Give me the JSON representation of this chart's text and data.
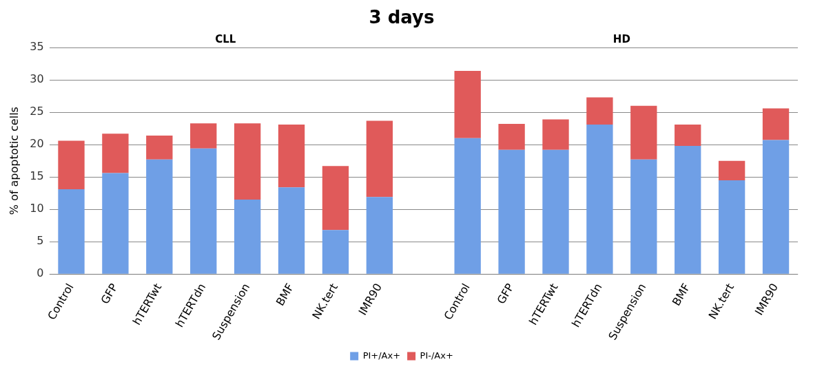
{
  "chart_data": {
    "type": "bar",
    "title": "3 days",
    "ylabel": "% of apoptotic cells",
    "stacked": true,
    "grid": "y",
    "legend": "bottom",
    "annotations": [
      "CLL",
      "HD"
    ],
    "categories": [
      "Control",
      "GFP",
      "hTERTwt",
      "hTERTdn",
      "Suspension",
      "BMF",
      "NK.tert",
      "IMR90",
      null,
      "Control",
      "GFP",
      "hTERTwt",
      "hTERTdn",
      "Suspension",
      "BMF",
      "NK.tert",
      "IMR90"
    ],
    "ylim": [
      0,
      35
    ],
    "yticks": [
      0,
      5,
      10,
      15,
      20,
      25,
      30,
      35
    ],
    "series": [
      {
        "name": "PI+/Ax+",
        "color": "#6f9fe6",
        "values": [
          13.1,
          15.6,
          17.7,
          19.4,
          11.5,
          13.4,
          6.8,
          11.9,
          null,
          21.0,
          19.2,
          19.2,
          23.1,
          17.7,
          19.8,
          14.5,
          20.7
        ]
      },
      {
        "name": "PI-/Ax+",
        "color": "#e05a5a",
        "values": [
          7.5,
          6.1,
          3.7,
          3.9,
          11.8,
          9.7,
          9.9,
          11.8,
          null,
          10.4,
          4.0,
          4.7,
          4.2,
          8.3,
          3.3,
          3.0,
          4.9
        ]
      }
    ]
  }
}
